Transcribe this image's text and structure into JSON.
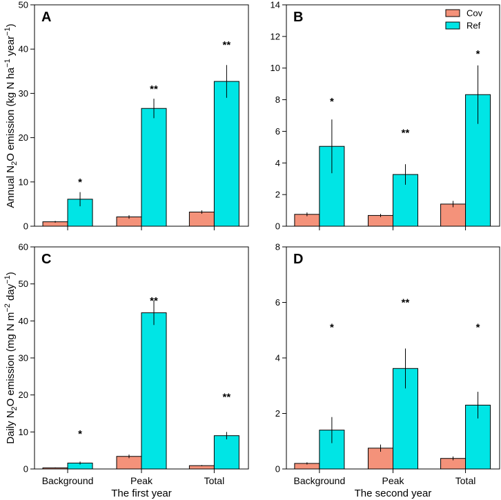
{
  "colors": {
    "Cov": "#F4927A",
    "Ref": "#00E5E5",
    "axis": "#000000"
  },
  "y_labels": {
    "annual": [
      "Annual N",
      "2",
      "O emission (kg N ha",
      "−1",
      " year",
      "−1",
      ")"
    ],
    "daily": [
      "Daily N",
      "2",
      "O emission (mg N m",
      "−2",
      " day",
      "−1",
      ")"
    ]
  },
  "chart_data": [
    {
      "type": "bar",
      "panel": "A",
      "title": "A",
      "categories": [
        "Background",
        "Peak",
        "Total"
      ],
      "series": [
        {
          "name": "Cov",
          "values": [
            1.0,
            2.1,
            3.2
          ],
          "err": [
            0.2,
            0.4,
            0.4
          ]
        },
        {
          "name": "Ref",
          "values": [
            6.1,
            26.6,
            32.7
          ],
          "err": [
            1.6,
            2.2,
            3.7
          ]
        }
      ],
      "significance": [
        "*",
        "**",
        "**"
      ],
      "sig_y": [
        10,
        31,
        41
      ],
      "ylim": [
        0,
        50
      ],
      "yticks": [
        0,
        10,
        20,
        30,
        40,
        50
      ],
      "xlabel": "",
      "ylabel": "Annual N2O emission (kg N ha−1 year−1)"
    },
    {
      "type": "bar",
      "panel": "B",
      "title": "B",
      "categories": [
        "Background",
        "Peak",
        "Total"
      ],
      "series": [
        {
          "name": "Cov",
          "values": [
            0.75,
            0.68,
            1.4
          ],
          "err": [
            0.12,
            0.1,
            0.2
          ]
        },
        {
          "name": "Ref",
          "values": [
            5.05,
            3.27,
            8.32
          ],
          "err": [
            1.7,
            0.65,
            1.85
          ]
        }
      ],
      "significance": [
        "*",
        "**",
        "*"
      ],
      "sig_y": [
        7.9,
        5.9,
        10.9
      ],
      "ylim": [
        0,
        14
      ],
      "yticks": [
        0,
        2,
        4,
        6,
        8,
        10,
        12,
        14
      ],
      "legend": [
        "Cov",
        "Ref"
      ],
      "legend_position": "top-right",
      "xlabel": "",
      "ylabel": ""
    },
    {
      "type": "bar",
      "panel": "C",
      "title": "C",
      "categories": [
        "Background",
        "Peak",
        "Total"
      ],
      "series": [
        {
          "name": "Cov",
          "values": [
            0.3,
            3.4,
            0.9
          ],
          "err": [
            0.1,
            0.5,
            0.15
          ]
        },
        {
          "name": "Ref",
          "values": [
            1.6,
            42.2,
            9.0
          ],
          "err": [
            0.4,
            3.3,
            1.0
          ]
        }
      ],
      "significance": [
        "*",
        "**",
        "**"
      ],
      "sig_y": [
        9.5,
        45.5,
        19.5
      ],
      "ylim": [
        0,
        60
      ],
      "yticks": [
        0,
        10,
        20,
        30,
        40,
        50,
        60
      ],
      "xlabel": "The first year",
      "ylabel": "Daily N2O emission (mg N m−2 day−1)"
    },
    {
      "type": "bar",
      "panel": "D",
      "title": "D",
      "categories": [
        "Background",
        "Peak",
        "Total"
      ],
      "series": [
        {
          "name": "Cov",
          "values": [
            0.2,
            0.75,
            0.38
          ],
          "err": [
            0.04,
            0.13,
            0.07
          ]
        },
        {
          "name": "Ref",
          "values": [
            1.4,
            3.62,
            2.3
          ],
          "err": [
            0.47,
            0.72,
            0.48
          ]
        }
      ],
      "significance": [
        "*",
        "**",
        "*"
      ],
      "sig_y": [
        5.1,
        6.0,
        5.1
      ],
      "ylim": [
        0,
        8
      ],
      "yticks": [
        0,
        2,
        4,
        6,
        8
      ],
      "xlabel": "The second year",
      "ylabel": ""
    }
  ]
}
